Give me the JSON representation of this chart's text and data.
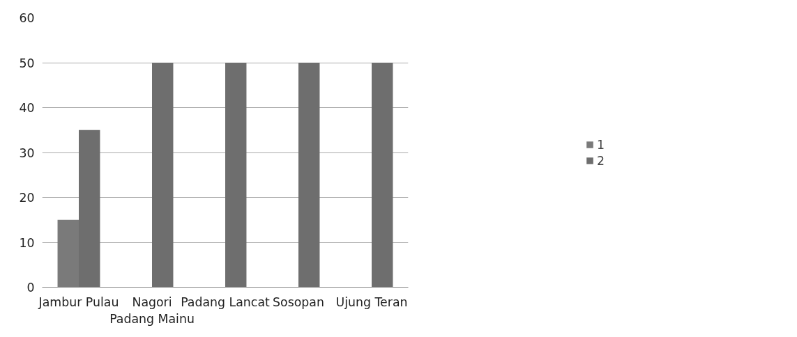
{
  "chart_data": {
    "type": "bar",
    "categories": [
      "Jambur Pulau",
      "Nagori Padang Mainu",
      "Padang Lancat",
      "Sosopan",
      "Ujung Teran"
    ],
    "series": [
      {
        "name": "1",
        "color": "#7a7a7a",
        "values": [
          15,
          null,
          null,
          null,
          null
        ]
      },
      {
        "name": "2",
        "color": "#6e6e6e",
        "values": [
          35,
          50,
          50,
          50,
          50
        ]
      }
    ],
    "ylim": [
      0,
      60
    ],
    "yticks": [
      0,
      10,
      20,
      30,
      40,
      50,
      60
    ],
    "grid": "y",
    "legend": "right"
  }
}
